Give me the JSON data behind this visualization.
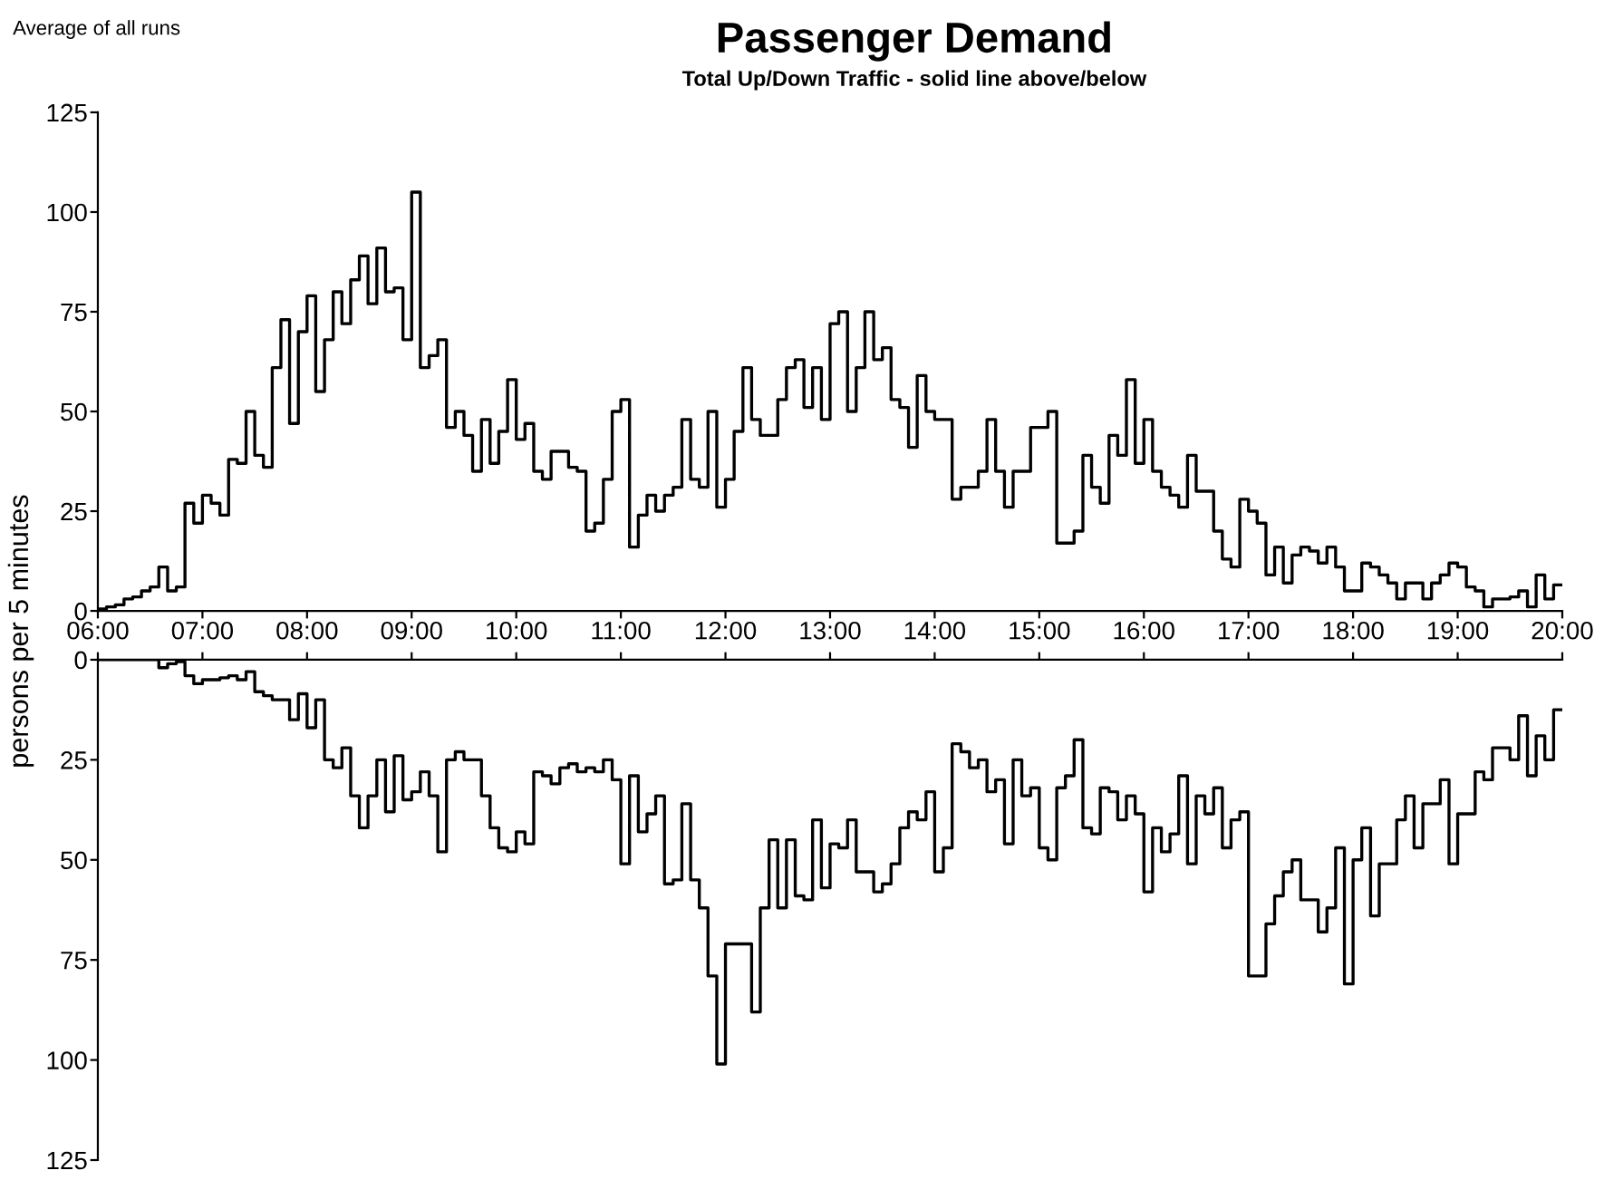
{
  "chart_data": [
    {
      "type": "step",
      "title": "Passenger Demand",
      "subtitle": "Total Up/Down Traffic - solid line above/below",
      "annotations": [
        "Average of all runs"
      ],
      "ylabel": "persons per 5 minutes",
      "x": [
        6,
        6.083,
        6.167,
        6.25,
        6.333,
        6.417,
        6.5,
        6.583,
        6.667,
        6.75,
        6.833,
        6.917,
        7,
        7.083,
        7.167,
        7.25,
        7.333,
        7.417,
        7.5,
        7.583,
        7.667,
        7.75,
        7.833,
        7.917,
        8,
        8.083,
        8.167,
        8.25,
        8.333,
        8.417,
        8.5,
        8.583,
        8.667,
        8.75,
        8.833,
        8.917,
        9,
        9.083,
        9.167,
        9.25,
        9.333,
        9.417,
        9.5,
        9.583,
        9.667,
        9.75,
        9.833,
        9.917,
        10,
        10.083,
        10.167,
        10.25,
        10.333,
        10.417,
        10.5,
        10.583,
        10.667,
        10.75,
        10.833,
        10.917,
        11,
        11.083,
        11.167,
        11.25,
        11.333,
        11.417,
        11.5,
        11.583,
        11.667,
        11.75,
        11.833,
        11.917,
        12,
        12.083,
        12.167,
        12.25,
        12.333,
        12.417,
        12.5,
        12.583,
        12.667,
        12.75,
        12.833,
        12.917,
        13,
        13.083,
        13.167,
        13.25,
        13.333,
        13.417,
        13.5,
        13.583,
        13.667,
        13.75,
        13.833,
        13.917,
        14,
        14.083,
        14.167,
        14.25,
        14.333,
        14.417,
        14.5,
        14.583,
        14.667,
        14.75,
        14.833,
        14.917,
        15,
        15.083,
        15.167,
        15.25,
        15.333,
        15.417,
        15.5,
        15.583,
        15.667,
        15.75,
        15.833,
        15.917,
        16,
        16.083,
        16.167,
        16.25,
        16.333,
        16.417,
        16.5,
        16.583,
        16.667,
        16.75,
        16.833,
        16.917,
        17,
        17.083,
        17.167,
        17.25,
        17.333,
        17.417,
        17.5,
        17.583,
        17.667,
        17.75,
        17.833,
        17.917,
        18,
        18.083,
        18.167,
        18.25,
        18.333,
        18.417,
        18.5,
        18.583,
        18.667,
        18.75,
        18.833,
        18.917,
        19,
        19.083,
        19.167,
        19.25,
        19.333,
        19.417,
        19.5,
        19.583,
        19.667,
        19.75,
        19.833,
        19.917,
        20
      ],
      "xlim": [
        6,
        20
      ],
      "xticks": [
        {
          "value": 6,
          "label": "06:00"
        },
        {
          "value": 7,
          "label": "07:00"
        },
        {
          "value": 8,
          "label": "08:00"
        },
        {
          "value": 9,
          "label": "09:00"
        },
        {
          "value": 10,
          "label": "10:00"
        },
        {
          "value": 11,
          "label": "11:00"
        },
        {
          "value": 12,
          "label": "12:00"
        },
        {
          "value": 13,
          "label": "13:00"
        },
        {
          "value": 14,
          "label": "14:00"
        },
        {
          "value": 15,
          "label": "15:00"
        },
        {
          "value": 16,
          "label": "16:00"
        },
        {
          "value": 17,
          "label": "17:00"
        },
        {
          "value": 18,
          "label": "18:00"
        },
        {
          "value": 19,
          "label": "19:00"
        },
        {
          "value": 20,
          "label": "20:00"
        }
      ],
      "ylim": [
        0,
        125
      ],
      "yticks": [
        0,
        25,
        50,
        75,
        100,
        125
      ],
      "series": [
        {
          "color": "#000000",
          "values": [
            0.5,
            1,
            1.5,
            3,
            3.5,
            5,
            6,
            11,
            5,
            6,
            27,
            22,
            29,
            27,
            24,
            38,
            37,
            50,
            39,
            36,
            61,
            73,
            47,
            70,
            79,
            55,
            68,
            80,
            72,
            83,
            89,
            77,
            91,
            80,
            81,
            68,
            105,
            61,
            64,
            68,
            46,
            50,
            44,
            35,
            48,
            37,
            45,
            58,
            43,
            47,
            35,
            33,
            40,
            40,
            36,
            35,
            20,
            22,
            33,
            50,
            53,
            16,
            24,
            29,
            25,
            29,
            31,
            48,
            33,
            31,
            50,
            26,
            33,
            45,
            61,
            48,
            44,
            44,
            53,
            61,
            63,
            51,
            61,
            48,
            72,
            75,
            50,
            61,
            75,
            63,
            66,
            53,
            51,
            41,
            59,
            50,
            48,
            48,
            28,
            31,
            31,
            35,
            48,
            35,
            26,
            35,
            35,
            46,
            46,
            50,
            17,
            17,
            20,
            39,
            31,
            27,
            44,
            39,
            58,
            37,
            48,
            35,
            31,
            29,
            26,
            39,
            30,
            30,
            20,
            13,
            11,
            28,
            25,
            22,
            9,
            16,
            7,
            14,
            16,
            15,
            12,
            16,
            11,
            5,
            5,
            12,
            11,
            9,
            7,
            3,
            7,
            7,
            3,
            7,
            9,
            12,
            11,
            6,
            5,
            1,
            3,
            3,
            3.5,
            5,
            1,
            9,
            3,
            6.5,
            6.5
          ]
        }
      ]
    },
    {
      "type": "step",
      "tick_labels": "y",
      "x": [
        6,
        6.083,
        6.167,
        6.25,
        6.333,
        6.417,
        6.5,
        6.583,
        6.667,
        6.75,
        6.833,
        6.917,
        7,
        7.083,
        7.167,
        7.25,
        7.333,
        7.417,
        7.5,
        7.583,
        7.667,
        7.75,
        7.833,
        7.917,
        8,
        8.083,
        8.167,
        8.25,
        8.333,
        8.417,
        8.5,
        8.583,
        8.667,
        8.75,
        8.833,
        8.917,
        9,
        9.083,
        9.167,
        9.25,
        9.333,
        9.417,
        9.5,
        9.583,
        9.667,
        9.75,
        9.833,
        9.917,
        10,
        10.083,
        10.167,
        10.25,
        10.333,
        10.417,
        10.5,
        10.583,
        10.667,
        10.75,
        10.833,
        10.917,
        11,
        11.083,
        11.167,
        11.25,
        11.333,
        11.417,
        11.5,
        11.583,
        11.667,
        11.75,
        11.833,
        11.917,
        12,
        12.083,
        12.167,
        12.25,
        12.333,
        12.417,
        12.5,
        12.583,
        12.667,
        12.75,
        12.833,
        12.917,
        13,
        13.083,
        13.167,
        13.25,
        13.333,
        13.417,
        13.5,
        13.583,
        13.667,
        13.75,
        13.833,
        13.917,
        14,
        14.083,
        14.167,
        14.25,
        14.333,
        14.417,
        14.5,
        14.583,
        14.667,
        14.75,
        14.833,
        14.917,
        15,
        15.083,
        15.167,
        15.25,
        15.333,
        15.417,
        15.5,
        15.583,
        15.667,
        15.75,
        15.833,
        15.917,
        16,
        16.083,
        16.167,
        16.25,
        16.333,
        16.417,
        16.5,
        16.583,
        16.667,
        16.75,
        16.833,
        16.917,
        17,
        17.083,
        17.167,
        17.25,
        17.333,
        17.417,
        17.5,
        17.583,
        17.667,
        17.75,
        17.833,
        17.917,
        18,
        18.083,
        18.167,
        18.25,
        18.333,
        18.417,
        18.5,
        18.583,
        18.667,
        18.75,
        18.833,
        18.917,
        19,
        19.083,
        19.167,
        19.25,
        19.333,
        19.417,
        19.5,
        19.583,
        19.667,
        19.75,
        19.833,
        19.917,
        20
      ],
      "xlim": [
        6,
        20
      ],
      "xticks": [
        6,
        7,
        8,
        9,
        10,
        11,
        12,
        13,
        14,
        15,
        16,
        17,
        18,
        19,
        20
      ],
      "ylim": [
        125,
        0
      ],
      "yticks": [
        0,
        25,
        50,
        75,
        100,
        125
      ],
      "series": [
        {
          "color": "#000000",
          "values": [
            0,
            0,
            0,
            0,
            0,
            0,
            0,
            2,
            1,
            0.5,
            4,
            6,
            5,
            5,
            4.5,
            4,
            5,
            3,
            8,
            9,
            10,
            10,
            15,
            8.5,
            17,
            10,
            25,
            27,
            22,
            34,
            42,
            34,
            25,
            38,
            24,
            35,
            33,
            28,
            34,
            48,
            25,
            23,
            25,
            25,
            34,
            42,
            47,
            48,
            43,
            46,
            28,
            29,
            31,
            27,
            26,
            28,
            27,
            28,
            25,
            30,
            51,
            29,
            43,
            38.5,
            34,
            56,
            55,
            36,
            55,
            62,
            79,
            101,
            71,
            71,
            71,
            88,
            62,
            45,
            62,
            45,
            59,
            60,
            40,
            57,
            46,
            47,
            40,
            53,
            53,
            58,
            56,
            51,
            42,
            38,
            40,
            33,
            53,
            47,
            21,
            23,
            27,
            25,
            33,
            30,
            46,
            25,
            34,
            32,
            47,
            50,
            32,
            29,
            20,
            42,
            43.5,
            32,
            33,
            40,
            34,
            38.5,
            58,
            42,
            48,
            43.5,
            29,
            51,
            34,
            38.5,
            32,
            47,
            40,
            38,
            79,
            79,
            66,
            59,
            53,
            50,
            60,
            60,
            68,
            62,
            47,
            81,
            50,
            42,
            64,
            51,
            51,
            40,
            34,
            47,
            36,
            36,
            30,
            51,
            38.5,
            38.5,
            28,
            30,
            22,
            22,
            25,
            14,
            29,
            19,
            25,
            12.5,
            12.5
          ]
        }
      ]
    }
  ]
}
